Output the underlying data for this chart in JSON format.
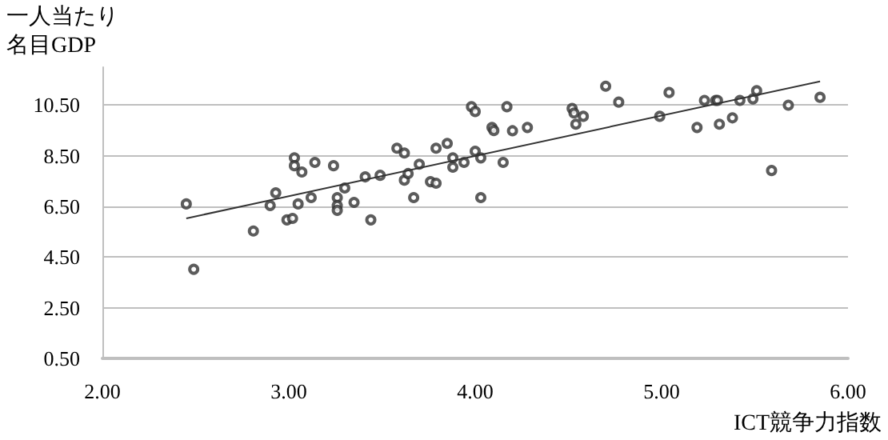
{
  "chart_data": {
    "type": "scatter",
    "xlabel": "ICT競争力指数",
    "ylabel": "一人当たり名目GDP",
    "xlim": [
      2,
      6
    ],
    "xticks": [
      {
        "value": 2,
        "label": "2.00"
      },
      {
        "value": 3,
        "label": "3.00"
      },
      {
        "value": 4,
        "label": "4.00"
      },
      {
        "value": 5,
        "label": "5.00"
      },
      {
        "value": 6,
        "label": "6.00"
      }
    ],
    "ylim": [
      0.5,
      12
    ],
    "yticks": [
      {
        "value": 0.5,
        "label": "0.50"
      },
      {
        "value": 2.5,
        "label": "2.50"
      },
      {
        "value": 4.5,
        "label": "4.50"
      },
      {
        "value": 6.5,
        "label": "6.50"
      },
      {
        "value": 8.5,
        "label": "8.50"
      },
      {
        "value": 10.5,
        "label": "10.50"
      }
    ],
    "grid": "y",
    "marker": "circle",
    "series": [
      {
        "color": "#333333",
        "x": [
          2.45,
          2.49,
          2.81,
          2.9,
          2.93,
          2.99,
          3.02,
          3.03,
          3.03,
          3.05,
          3.07,
          3.12,
          3.14,
          3.24,
          3.26,
          3.26,
          3.26,
          3.3,
          3.35,
          3.41,
          3.44,
          3.49,
          3.58,
          3.62,
          3.62,
          3.64,
          3.67,
          3.7,
          3.76,
          3.79,
          3.79,
          3.85,
          3.88,
          3.88,
          3.94,
          3.98,
          4.0,
          4.0,
          4.03,
          4.03,
          4.09,
          4.1,
          4.15,
          4.17,
          4.2,
          4.28,
          4.52,
          4.53,
          4.54,
          4.58,
          4.7,
          4.77,
          4.99,
          5.04,
          5.19,
          5.23,
          5.29,
          5.3,
          5.31,
          5.38,
          5.42,
          5.49,
          5.51,
          5.59,
          5.68,
          5.85
        ],
        "values": [
          6.6,
          4.02,
          5.53,
          6.54,
          7.04,
          5.97,
          6.03,
          8.42,
          8.11,
          6.6,
          7.86,
          6.85,
          8.24,
          8.11,
          6.85,
          6.54,
          6.35,
          7.23,
          6.66,
          7.67,
          5.97,
          7.73,
          8.8,
          8.61,
          7.54,
          7.8,
          6.85,
          8.17,
          7.48,
          7.42,
          8.8,
          8.99,
          8.42,
          8.05,
          8.24,
          10.44,
          10.25,
          8.68,
          8.42,
          6.85,
          9.62,
          9.5,
          8.24,
          10.44,
          9.49,
          9.62,
          10.37,
          10.19,
          9.75,
          10.06,
          11.25,
          10.62,
          10.06,
          11.0,
          9.62,
          10.69,
          10.69,
          10.69,
          9.75,
          10.0,
          10.69,
          10.75,
          11.07,
          7.92,
          10.5,
          10.81
        ]
      },
      {
        "type": "line",
        "color": "#333333",
        "marker": "none",
        "x": [
          2.45,
          5.85
        ],
        "values": [
          6.03,
          11.44
        ]
      }
    ]
  }
}
